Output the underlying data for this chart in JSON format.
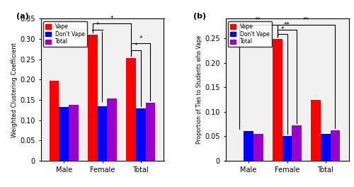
{
  "panel_a": {
    "categories": [
      "Male",
      "Female",
      "Total"
    ],
    "vape": [
      0.197,
      0.31,
      0.253
    ],
    "dont_vape": [
      0.132,
      0.135,
      0.13
    ],
    "total": [
      0.138,
      0.153,
      0.143
    ],
    "ylabel": "Weighted Clustering Coefficient",
    "ylim": [
      0,
      0.35
    ],
    "yticks": [
      0,
      0.05,
      0.1,
      0.15,
      0.2,
      0.25,
      0.3,
      0.35
    ]
  },
  "panel_b": {
    "categories": [
      "Male",
      "Female",
      "Total"
    ],
    "vape": [
      0.0,
      0.249,
      0.125
    ],
    "dont_vape": [
      0.061,
      0.051,
      0.055
    ],
    "total": [
      0.055,
      0.072,
      0.062
    ],
    "ylabel": "Proportion of Ties to Students who Vape",
    "ylim": [
      0,
      0.29
    ],
    "yticks": [
      0,
      0.05,
      0.1,
      0.15,
      0.2,
      0.25
    ]
  },
  "colors": {
    "vape": "#FF0000",
    "dont_vape": "#0000FF",
    "total": "#9900CC"
  },
  "bar_width": 0.25,
  "legend_labels": [
    "Vape",
    "Don't Vape",
    "Total"
  ],
  "bg_color": "#F0F0F0",
  "fig_bg": "#FFFFFF"
}
